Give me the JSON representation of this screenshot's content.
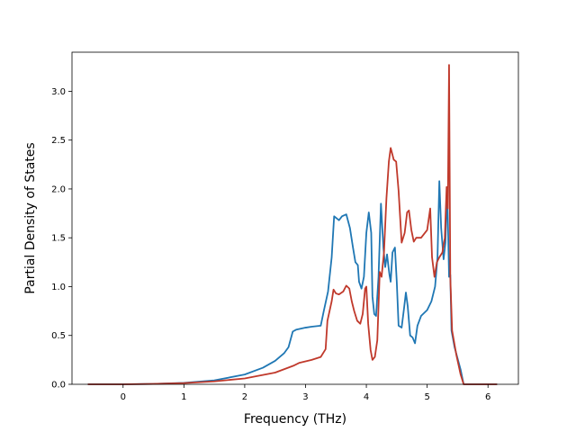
{
  "chart_data": {
    "type": "line",
    "title": "",
    "xlabel": "Frequency (THz)",
    "ylabel": "Partial Density of States",
    "xlim": [
      -0.84,
      6.5
    ],
    "ylim": [
      0.0,
      3.4
    ],
    "xticks": [
      0,
      1,
      2,
      3,
      4,
      5,
      6
    ],
    "xtick_labels": [
      "0",
      "1",
      "2",
      "3",
      "4",
      "5",
      "6"
    ],
    "yticks": [
      0.0,
      0.5,
      1.0,
      1.5,
      2.0,
      2.5,
      3.0
    ],
    "ytick_labels": [
      "0.0",
      "0.5",
      "1.0",
      "1.5",
      "2.0",
      "2.5",
      "3.0"
    ],
    "grid": false,
    "legend": "none",
    "series": [
      {
        "color": "#1f77b4",
        "points": [
          [
            -0.58,
            0.0
          ],
          [
            0.0,
            0.0
          ],
          [
            0.5,
            0.004
          ],
          [
            1.0,
            0.015
          ],
          [
            1.5,
            0.04
          ],
          [
            2.0,
            0.1
          ],
          [
            2.3,
            0.17
          ],
          [
            2.5,
            0.24
          ],
          [
            2.65,
            0.32
          ],
          [
            2.72,
            0.38
          ],
          [
            2.79,
            0.54
          ],
          [
            2.85,
            0.56
          ],
          [
            3.0,
            0.58
          ],
          [
            3.1,
            0.59
          ],
          [
            3.25,
            0.6
          ],
          [
            3.3,
            0.75
          ],
          [
            3.37,
            0.95
          ],
          [
            3.43,
            1.3
          ],
          [
            3.47,
            1.72
          ],
          [
            3.55,
            1.68
          ],
          [
            3.6,
            1.72
          ],
          [
            3.67,
            1.74
          ],
          [
            3.73,
            1.6
          ],
          [
            3.78,
            1.4
          ],
          [
            3.82,
            1.25
          ],
          [
            3.86,
            1.22
          ],
          [
            3.88,
            1.05
          ],
          [
            3.92,
            0.98
          ],
          [
            3.96,
            1.1
          ],
          [
            4.0,
            1.55
          ],
          [
            4.04,
            1.76
          ],
          [
            4.08,
            1.55
          ],
          [
            4.1,
            0.9
          ],
          [
            4.13,
            0.72
          ],
          [
            4.16,
            0.7
          ],
          [
            4.2,
            1.1
          ],
          [
            4.24,
            1.85
          ],
          [
            4.28,
            1.4
          ],
          [
            4.31,
            1.2
          ],
          [
            4.34,
            1.33
          ],
          [
            4.38,
            1.12
          ],
          [
            4.4,
            1.05
          ],
          [
            4.43,
            1.35
          ],
          [
            4.47,
            1.4
          ],
          [
            4.5,
            1.05
          ],
          [
            4.53,
            0.6
          ],
          [
            4.58,
            0.58
          ],
          [
            4.62,
            0.78
          ],
          [
            4.65,
            0.94
          ],
          [
            4.68,
            0.8
          ],
          [
            4.72,
            0.5
          ],
          [
            4.76,
            0.48
          ],
          [
            4.8,
            0.42
          ],
          [
            4.84,
            0.6
          ],
          [
            4.9,
            0.7
          ],
          [
            5.0,
            0.76
          ],
          [
            5.07,
            0.85
          ],
          [
            5.13,
            1.0
          ],
          [
            5.17,
            1.3
          ],
          [
            5.2,
            2.08
          ],
          [
            5.23,
            1.6
          ],
          [
            5.27,
            1.28
          ],
          [
            5.3,
            1.45
          ],
          [
            5.33,
            2.0
          ],
          [
            5.36,
            1.1
          ],
          [
            5.38,
            1.12
          ],
          [
            5.4,
            0.55
          ],
          [
            5.45,
            0.38
          ],
          [
            5.55,
            0.15
          ],
          [
            5.6,
            0.0
          ],
          [
            6.15,
            0.0
          ]
        ]
      },
      {
        "color": "#c0392b",
        "points": [
          [
            -0.58,
            0.0
          ],
          [
            0.0,
            0.0
          ],
          [
            0.5,
            0.004
          ],
          [
            1.0,
            0.013
          ],
          [
            1.5,
            0.03
          ],
          [
            2.0,
            0.06
          ],
          [
            2.5,
            0.12
          ],
          [
            2.8,
            0.19
          ],
          [
            2.9,
            0.22
          ],
          [
            3.1,
            0.25
          ],
          [
            3.25,
            0.28
          ],
          [
            3.33,
            0.36
          ],
          [
            3.36,
            0.65
          ],
          [
            3.43,
            0.85
          ],
          [
            3.46,
            0.97
          ],
          [
            3.5,
            0.93
          ],
          [
            3.55,
            0.92
          ],
          [
            3.62,
            0.95
          ],
          [
            3.67,
            1.01
          ],
          [
            3.72,
            0.98
          ],
          [
            3.76,
            0.85
          ],
          [
            3.8,
            0.75
          ],
          [
            3.85,
            0.65
          ],
          [
            3.9,
            0.62
          ],
          [
            3.94,
            0.72
          ],
          [
            3.98,
            0.98
          ],
          [
            4.0,
            1.0
          ],
          [
            4.03,
            0.62
          ],
          [
            4.07,
            0.35
          ],
          [
            4.1,
            0.25
          ],
          [
            4.14,
            0.28
          ],
          [
            4.18,
            0.45
          ],
          [
            4.22,
            1.15
          ],
          [
            4.25,
            1.1
          ],
          [
            4.29,
            1.35
          ],
          [
            4.33,
            1.9
          ],
          [
            4.37,
            2.28
          ],
          [
            4.4,
            2.42
          ],
          [
            4.45,
            2.3
          ],
          [
            4.49,
            2.28
          ],
          [
            4.53,
            1.98
          ],
          [
            4.58,
            1.45
          ],
          [
            4.63,
            1.55
          ],
          [
            4.67,
            1.76
          ],
          [
            4.7,
            1.78
          ],
          [
            4.74,
            1.58
          ],
          [
            4.78,
            1.46
          ],
          [
            4.82,
            1.5
          ],
          [
            4.9,
            1.5
          ],
          [
            5.0,
            1.58
          ],
          [
            5.05,
            1.8
          ],
          [
            5.08,
            1.3
          ],
          [
            5.12,
            1.1
          ],
          [
            5.16,
            1.25
          ],
          [
            5.2,
            1.3
          ],
          [
            5.25,
            1.35
          ],
          [
            5.29,
            1.5
          ],
          [
            5.32,
            2.02
          ],
          [
            5.34,
            1.8
          ],
          [
            5.36,
            3.27
          ],
          [
            5.38,
            1.1
          ],
          [
            5.41,
            0.55
          ],
          [
            5.48,
            0.3
          ],
          [
            5.55,
            0.1
          ],
          [
            5.6,
            0.0
          ],
          [
            6.15,
            0.0
          ]
        ]
      }
    ]
  }
}
